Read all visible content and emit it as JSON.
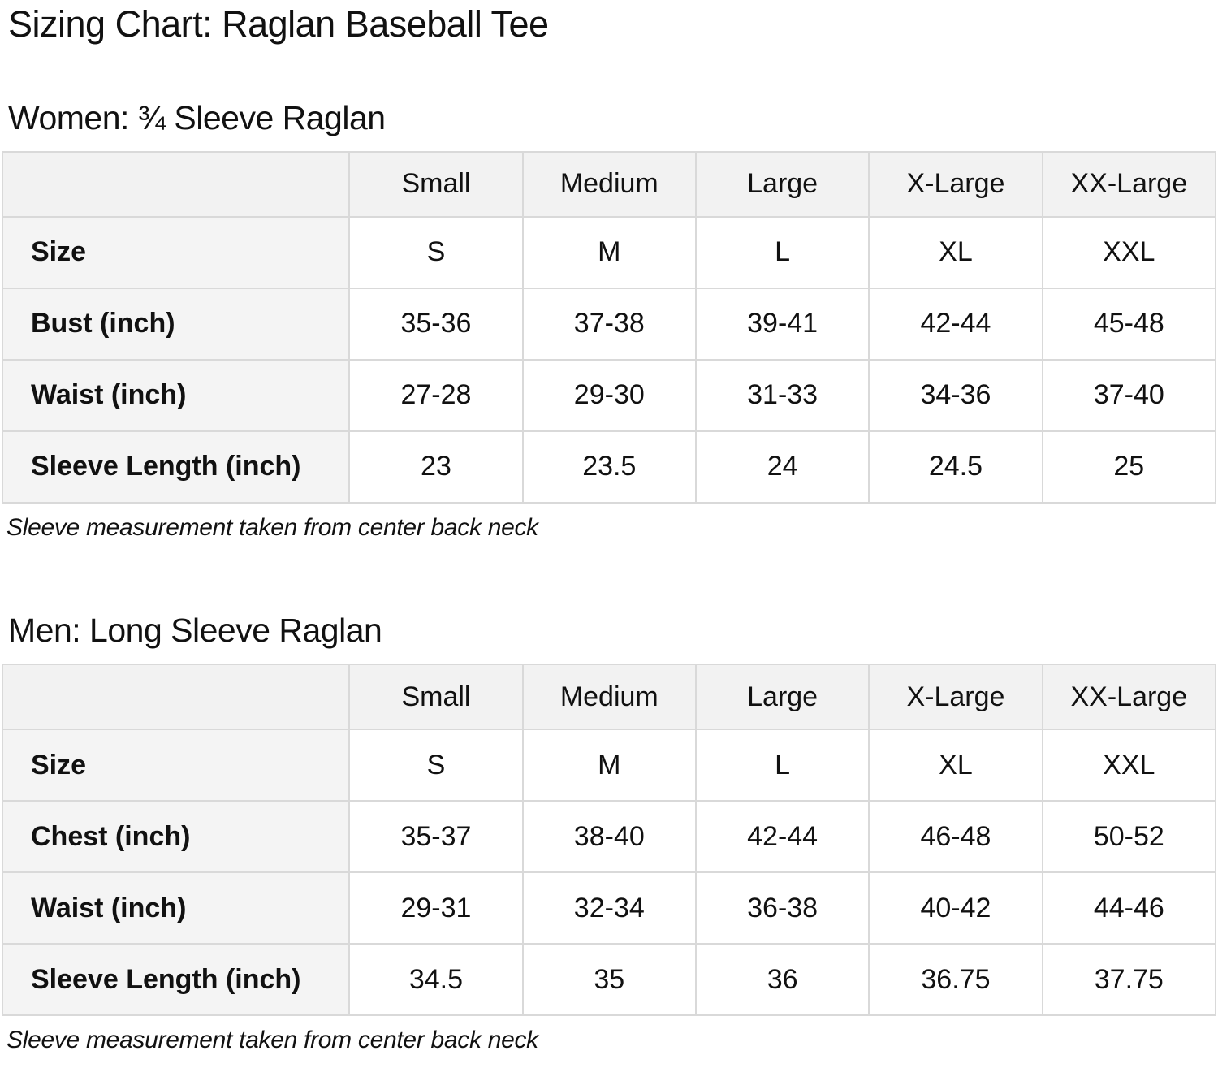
{
  "page": {
    "title": "Sizing Chart: Raglan Baseball Tee"
  },
  "women": {
    "heading": "Women: ¾ Sleeve Raglan",
    "col_headers": {
      "c1": "Small",
      "c2": "Medium",
      "c3": "Large",
      "c4": "X-Large",
      "c5": "XX-Large"
    },
    "rows": [
      {
        "label": "Size",
        "values": [
          "S",
          "M",
          "L",
          "XL",
          "XXL"
        ]
      },
      {
        "label": "Bust (inch)",
        "values": [
          "35-36",
          "37-38",
          "39-41",
          "42-44",
          "45-48"
        ]
      },
      {
        "label": "Waist (inch)",
        "values": [
          "27-28",
          "29-30",
          "31-33",
          "34-36",
          "37-40"
        ]
      },
      {
        "label": "Sleeve Length (inch)",
        "values": [
          "23",
          "23.5",
          "24",
          "24.5",
          "25"
        ]
      }
    ],
    "note": "Sleeve measurement taken from center back neck"
  },
  "men": {
    "heading": "Men: Long Sleeve Raglan",
    "col_headers": {
      "c1": "Small",
      "c2": "Medium",
      "c3": "Large",
      "c4": "X-Large",
      "c5": "XX-Large"
    },
    "rows": [
      {
        "label": "Size",
        "values": [
          "S",
          "M",
          "L",
          "XL",
          "XXL"
        ]
      },
      {
        "label": "Chest (inch)",
        "values": [
          "35-37",
          "38-40",
          "42-44",
          "46-48",
          "50-52"
        ]
      },
      {
        "label": "Waist (inch)",
        "values": [
          "29-31",
          "32-34",
          "36-38",
          "40-42",
          "44-46"
        ]
      },
      {
        "label": "Sleeve Length (inch)",
        "values": [
          "34.5",
          "35",
          "36",
          "36.75",
          "37.75"
        ]
      }
    ],
    "note": "Sleeve measurement taken from center back neck"
  },
  "chart_data": {
    "type": "table",
    "tables": [
      {
        "title": "Women: ¾ Sleeve Raglan",
        "columns": [
          "",
          "Small",
          "Medium",
          "Large",
          "X-Large",
          "XX-Large"
        ],
        "rows": [
          [
            "Size",
            "S",
            "M",
            "L",
            "XL",
            "XXL"
          ],
          [
            "Bust (inch)",
            "35-36",
            "37-38",
            "39-41",
            "42-44",
            "45-48"
          ],
          [
            "Waist (inch)",
            "27-28",
            "29-30",
            "31-33",
            "34-36",
            "37-40"
          ],
          [
            "Sleeve Length (inch)",
            "23",
            "23.5",
            "24",
            "24.5",
            "25"
          ]
        ]
      },
      {
        "title": "Men: Long Sleeve Raglan",
        "columns": [
          "",
          "Small",
          "Medium",
          "Large",
          "X-Large",
          "XX-Large"
        ],
        "rows": [
          [
            "Size",
            "S",
            "M",
            "L",
            "XL",
            "XXL"
          ],
          [
            "Chest (inch)",
            "35-37",
            "38-40",
            "42-44",
            "46-48",
            "50-52"
          ],
          [
            "Waist (inch)",
            "29-31",
            "32-34",
            "36-38",
            "40-42",
            "44-46"
          ],
          [
            "Sleeve Length (inch)",
            "34.5",
            "35",
            "36",
            "36.75",
            "37.75"
          ]
        ]
      }
    ]
  }
}
